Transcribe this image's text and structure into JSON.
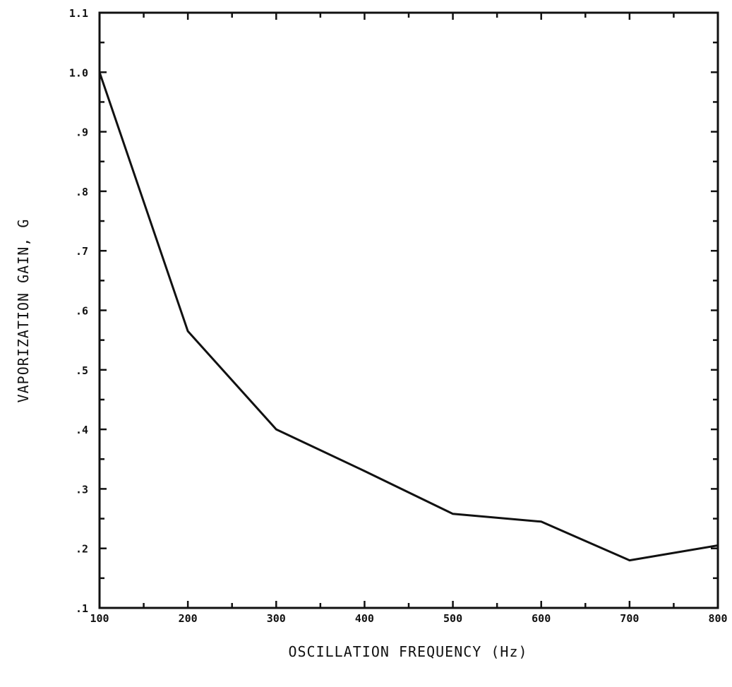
{
  "chart_data": {
    "type": "line",
    "title": "",
    "xlabel": "OSCILLATION FREQUENCY (Hz)",
    "ylabel": "VAPORIZATION GAIN, G",
    "xlim": [
      100,
      800
    ],
    "ylim": [
      0.1,
      1.1
    ],
    "grid": false,
    "legend": "none",
    "x_ticks": [
      {
        "value": 100,
        "label": "100"
      },
      {
        "value": 200,
        "label": "200"
      },
      {
        "value": 300,
        "label": "300"
      },
      {
        "value": 400,
        "label": "400"
      },
      {
        "value": 500,
        "label": "500"
      },
      {
        "value": 600,
        "label": "600"
      },
      {
        "value": 700,
        "label": "700"
      },
      {
        "value": 800,
        "label": "800"
      }
    ],
    "y_ticks": [
      {
        "value": 0.1,
        "label": ".1"
      },
      {
        "value": 0.2,
        "label": ".2"
      },
      {
        "value": 0.3,
        "label": ".3"
      },
      {
        "value": 0.4,
        "label": ".4"
      },
      {
        "value": 0.5,
        "label": ".5"
      },
      {
        "value": 0.6,
        "label": ".6"
      },
      {
        "value": 0.7,
        "label": ".7"
      },
      {
        "value": 0.8,
        "label": ".8"
      },
      {
        "value": 0.9,
        "label": ".9"
      },
      {
        "value": 1.0,
        "label": "1.0"
      },
      {
        "value": 1.1,
        "label": "1.1"
      }
    ],
    "series": [
      {
        "x": [
          100,
          200,
          300,
          400,
          500,
          600,
          700,
          800
        ],
        "y": [
          1.0,
          0.565,
          0.4,
          0.33,
          0.258,
          0.245,
          0.18,
          0.205
        ]
      }
    ],
    "colors": {
      "line": "#111111",
      "axes": "#111111",
      "background": "#ffffff"
    }
  }
}
